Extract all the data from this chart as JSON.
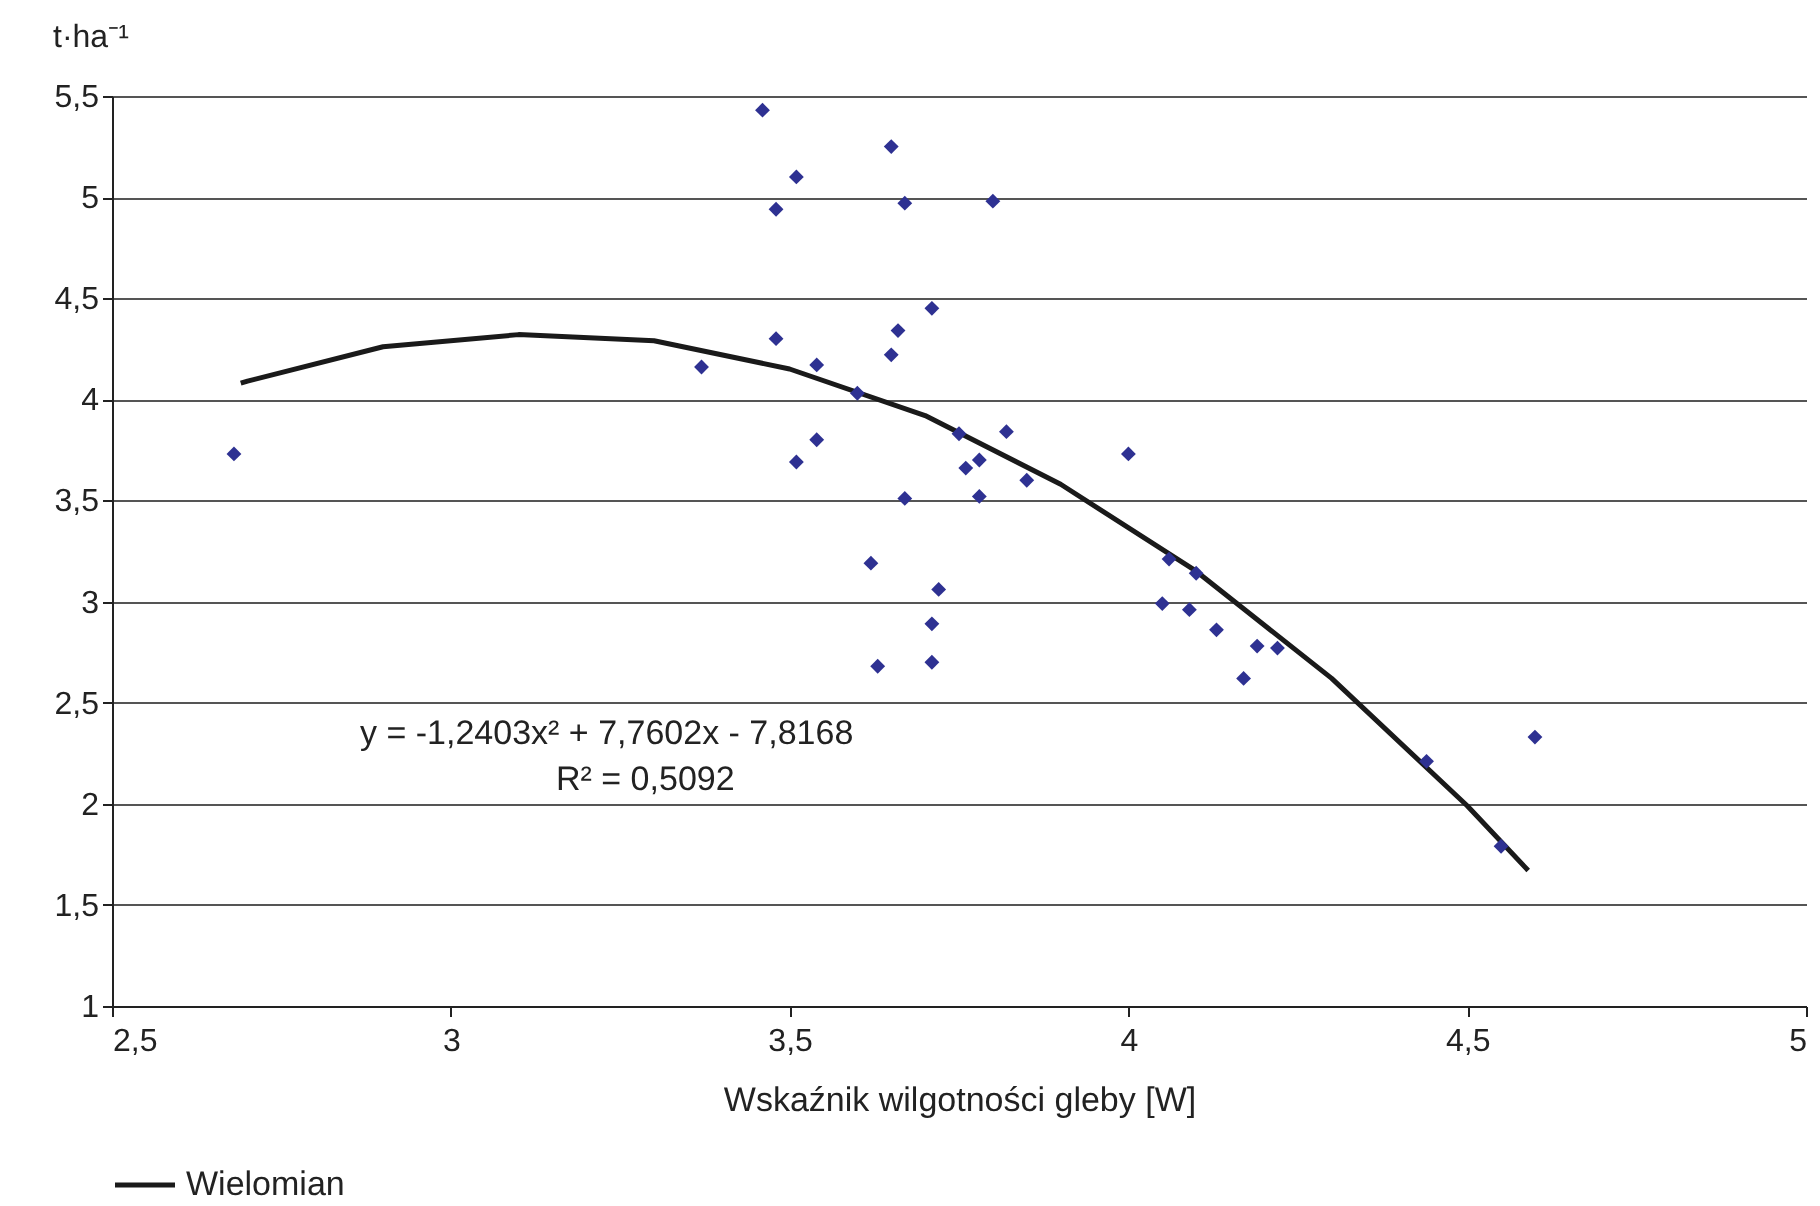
{
  "chart_data": {
    "type": "scatter",
    "xlabel": "Wskaźnik wilgotności gleby [W]",
    "ylabel": "t·ha⁻¹",
    "xlim": [
      2.5,
      5
    ],
    "ylim": [
      1,
      5.5
    ],
    "xticks": [
      {
        "value": 2.5,
        "label": "2,5"
      },
      3,
      {
        "value": 3.5,
        "label": "3,5"
      },
      4,
      {
        "value": 4.5,
        "label": "4,5"
      },
      5
    ],
    "yticks": [
      1,
      {
        "value": 1.5,
        "label": "1,5"
      },
      2,
      {
        "value": 2.5,
        "label": "2,5"
      },
      3,
      {
        "value": 3.5,
        "label": "3,5"
      },
      4,
      {
        "value": 4.5,
        "label": "4,5"
      },
      5,
      {
        "value": 5.5,
        "label": "5,5"
      }
    ],
    "grid": "y",
    "legend": "bottom",
    "marker": "diamond",
    "annotations": [
      "y = -1,2403x² + 7,7602x - 7,8168",
      "R² = 0,5092"
    ],
    "series": [
      {
        "color": "#2e3192",
        "x": [
          2.68,
          3.46,
          3.51,
          3.48,
          3.65,
          3.67,
          3.8,
          3.48,
          3.66,
          3.71,
          3.65,
          3.37,
          3.54,
          3.6,
          3.75,
          3.82,
          3.54,
          3.51,
          3.76,
          3.78,
          3.67,
          3.78,
          3.85,
          4.0,
          3.62,
          3.72,
          3.71,
          3.71,
          3.63,
          4.05,
          4.06,
          4.09,
          4.1,
          4.13,
          4.19,
          4.22,
          4.17,
          4.44,
          4.6,
          4.55
        ],
        "values": [
          3.73,
          5.43,
          5.1,
          4.94,
          5.25,
          4.97,
          4.98,
          4.3,
          4.34,
          4.45,
          4.22,
          4.16,
          4.17,
          4.03,
          3.83,
          3.84,
          3.8,
          3.69,
          3.66,
          3.7,
          3.51,
          3.52,
          3.6,
          3.73,
          3.19,
          3.06,
          2.89,
          2.7,
          2.68,
          2.99,
          3.21,
          2.96,
          3.14,
          2.86,
          2.78,
          2.77,
          2.62,
          2.21,
          2.33,
          1.79
        ]
      },
      {
        "type": "line",
        "name": "Wielomian",
        "color": "#1a1a1a",
        "marker": "none",
        "line_style": "solid",
        "x": [
          2.69,
          2.7,
          2.9,
          3.1,
          3.3,
          3.5,
          3.7,
          3.9,
          4.1,
          4.3,
          4.5,
          4.59
        ],
        "values": [
          4.08,
          4.09,
          4.26,
          4.32,
          4.29,
          4.15,
          3.92,
          3.58,
          3.15,
          2.62,
          1.99,
          1.67
        ]
      }
    ]
  }
}
